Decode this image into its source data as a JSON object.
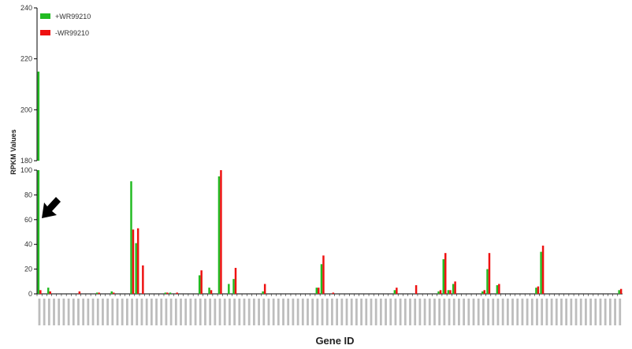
{
  "chart_data": {
    "type": "bar",
    "title": "",
    "xlabel": "Gene ID",
    "ylabel": "RPKM Values",
    "colors": {
      "plus": "#22bb22",
      "minus": "#ee1111",
      "arrow": "#000000"
    },
    "legend": {
      "position": "top-left",
      "entries": [
        {
          "name": "+WR99210",
          "color": "#22bb22"
        },
        {
          "name": "-WR99210",
          "color": "#ee1111"
        }
      ]
    },
    "upper_panel": {
      "ylim": [
        180,
        240
      ],
      "yticks": [
        "180",
        "200",
        "220",
        "240"
      ]
    },
    "lower_panel": {
      "ylim": [
        0,
        100
      ],
      "yticks": [
        "0",
        "20",
        "40",
        "60",
        "80",
        "100"
      ]
    },
    "axis_break": true,
    "arrow_annotation": {
      "points_to": "first gene",
      "glyph": "arrow"
    },
    "category_count": 120,
    "category_labels_legible": false,
    "series": [
      {
        "name": "+WR99210",
        "values": [
          215,
          0,
          5,
          0,
          0,
          0,
          0,
          0,
          0,
          0,
          0,
          0,
          1,
          0,
          0,
          2,
          0,
          0,
          0,
          91,
          41,
          0,
          0,
          0,
          0,
          0,
          1,
          1,
          0,
          0,
          0,
          0,
          0,
          15,
          0,
          5,
          0,
          95,
          0,
          8,
          12,
          0,
          0,
          0,
          0,
          0,
          2,
          0,
          0,
          0,
          0,
          0,
          0,
          0,
          0,
          0,
          0,
          5,
          24,
          0,
          0,
          0,
          0,
          0,
          0,
          0,
          0,
          0,
          0,
          0,
          0,
          0,
          0,
          3,
          0,
          0,
          0,
          0,
          0,
          0,
          0,
          0,
          2,
          28,
          3,
          8,
          0,
          0,
          0,
          0,
          0,
          2,
          20,
          0,
          7,
          0,
          0,
          0,
          0,
          0,
          0,
          0,
          5,
          34,
          0,
          0,
          0,
          0,
          0,
          0,
          0,
          0,
          0,
          0,
          0,
          0,
          0,
          0,
          0,
          3
        ]
      },
      {
        "name": "-WR99210",
        "values": [
          3,
          0,
          2,
          0,
          0,
          0,
          0,
          0,
          2,
          0,
          0,
          0,
          1,
          0,
          0,
          1,
          0,
          0,
          0,
          52,
          53,
          23,
          0,
          0,
          0,
          0,
          1,
          0,
          1,
          0,
          0,
          0,
          0,
          19,
          0,
          3,
          0,
          100,
          0,
          0,
          21,
          0,
          0,
          0,
          0,
          0,
          8,
          0,
          0,
          0,
          0,
          0,
          0,
          0,
          0,
          0,
          0,
          5,
          31,
          0,
          1,
          0,
          0,
          0,
          0,
          0,
          0,
          0,
          0,
          0,
          0,
          0,
          0,
          5,
          0,
          0,
          0,
          7,
          0,
          0,
          0,
          0,
          3,
          33,
          3,
          10,
          0,
          0,
          0,
          0,
          0,
          3,
          33,
          0,
          8,
          0,
          0,
          0,
          0,
          0,
          0,
          0,
          6,
          39,
          0,
          0,
          0,
          0,
          0,
          0,
          0,
          0,
          0,
          0,
          0,
          0,
          0,
          0,
          0,
          4
        ]
      }
    ]
  }
}
